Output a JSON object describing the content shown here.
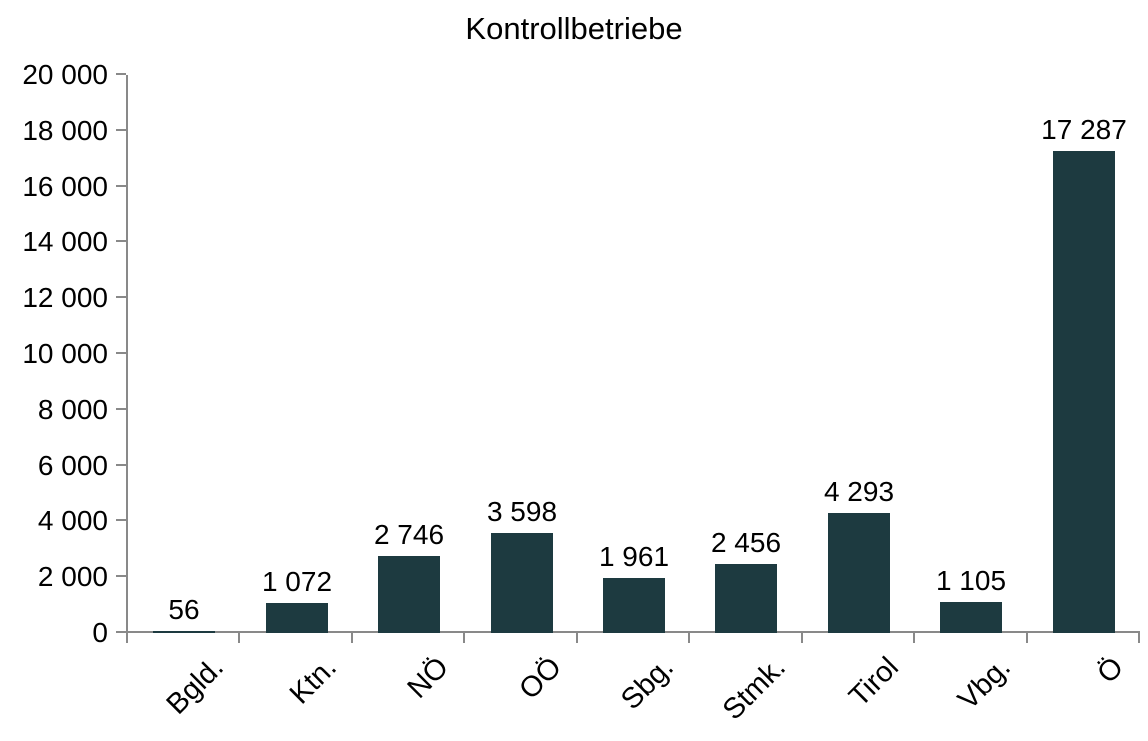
{
  "chart_data": {
    "type": "bar",
    "title": "Kontrollbetriebe",
    "categories": [
      "Bgld.",
      "Ktn.",
      "NÖ",
      "OÖ",
      "Sbg.",
      "Stmk.",
      "Tirol",
      "Vbg.",
      "Ö"
    ],
    "values": [
      56,
      1072,
      2746,
      3598,
      1961,
      2456,
      4293,
      1105,
      17287
    ],
    "value_labels": [
      "56",
      "1 072",
      "2 746",
      "3 598",
      "1 961",
      "2 456",
      "4 293",
      "1 105",
      "17 287"
    ],
    "xlabel": "",
    "ylabel": "",
    "ylim": [
      0,
      20000
    ],
    "ytick_step": 2000,
    "ytick_labels": [
      "0",
      "2 000",
      "4 000",
      "6 000",
      "8 000",
      "10 000",
      "12 000",
      "14 000",
      "16 000",
      "18 000",
      "20 000"
    ],
    "grid": false,
    "legend": "none",
    "colors": {
      "bar": "#1d3a40",
      "axis": "#898989",
      "text": "#000000",
      "background": "#ffffff"
    }
  }
}
